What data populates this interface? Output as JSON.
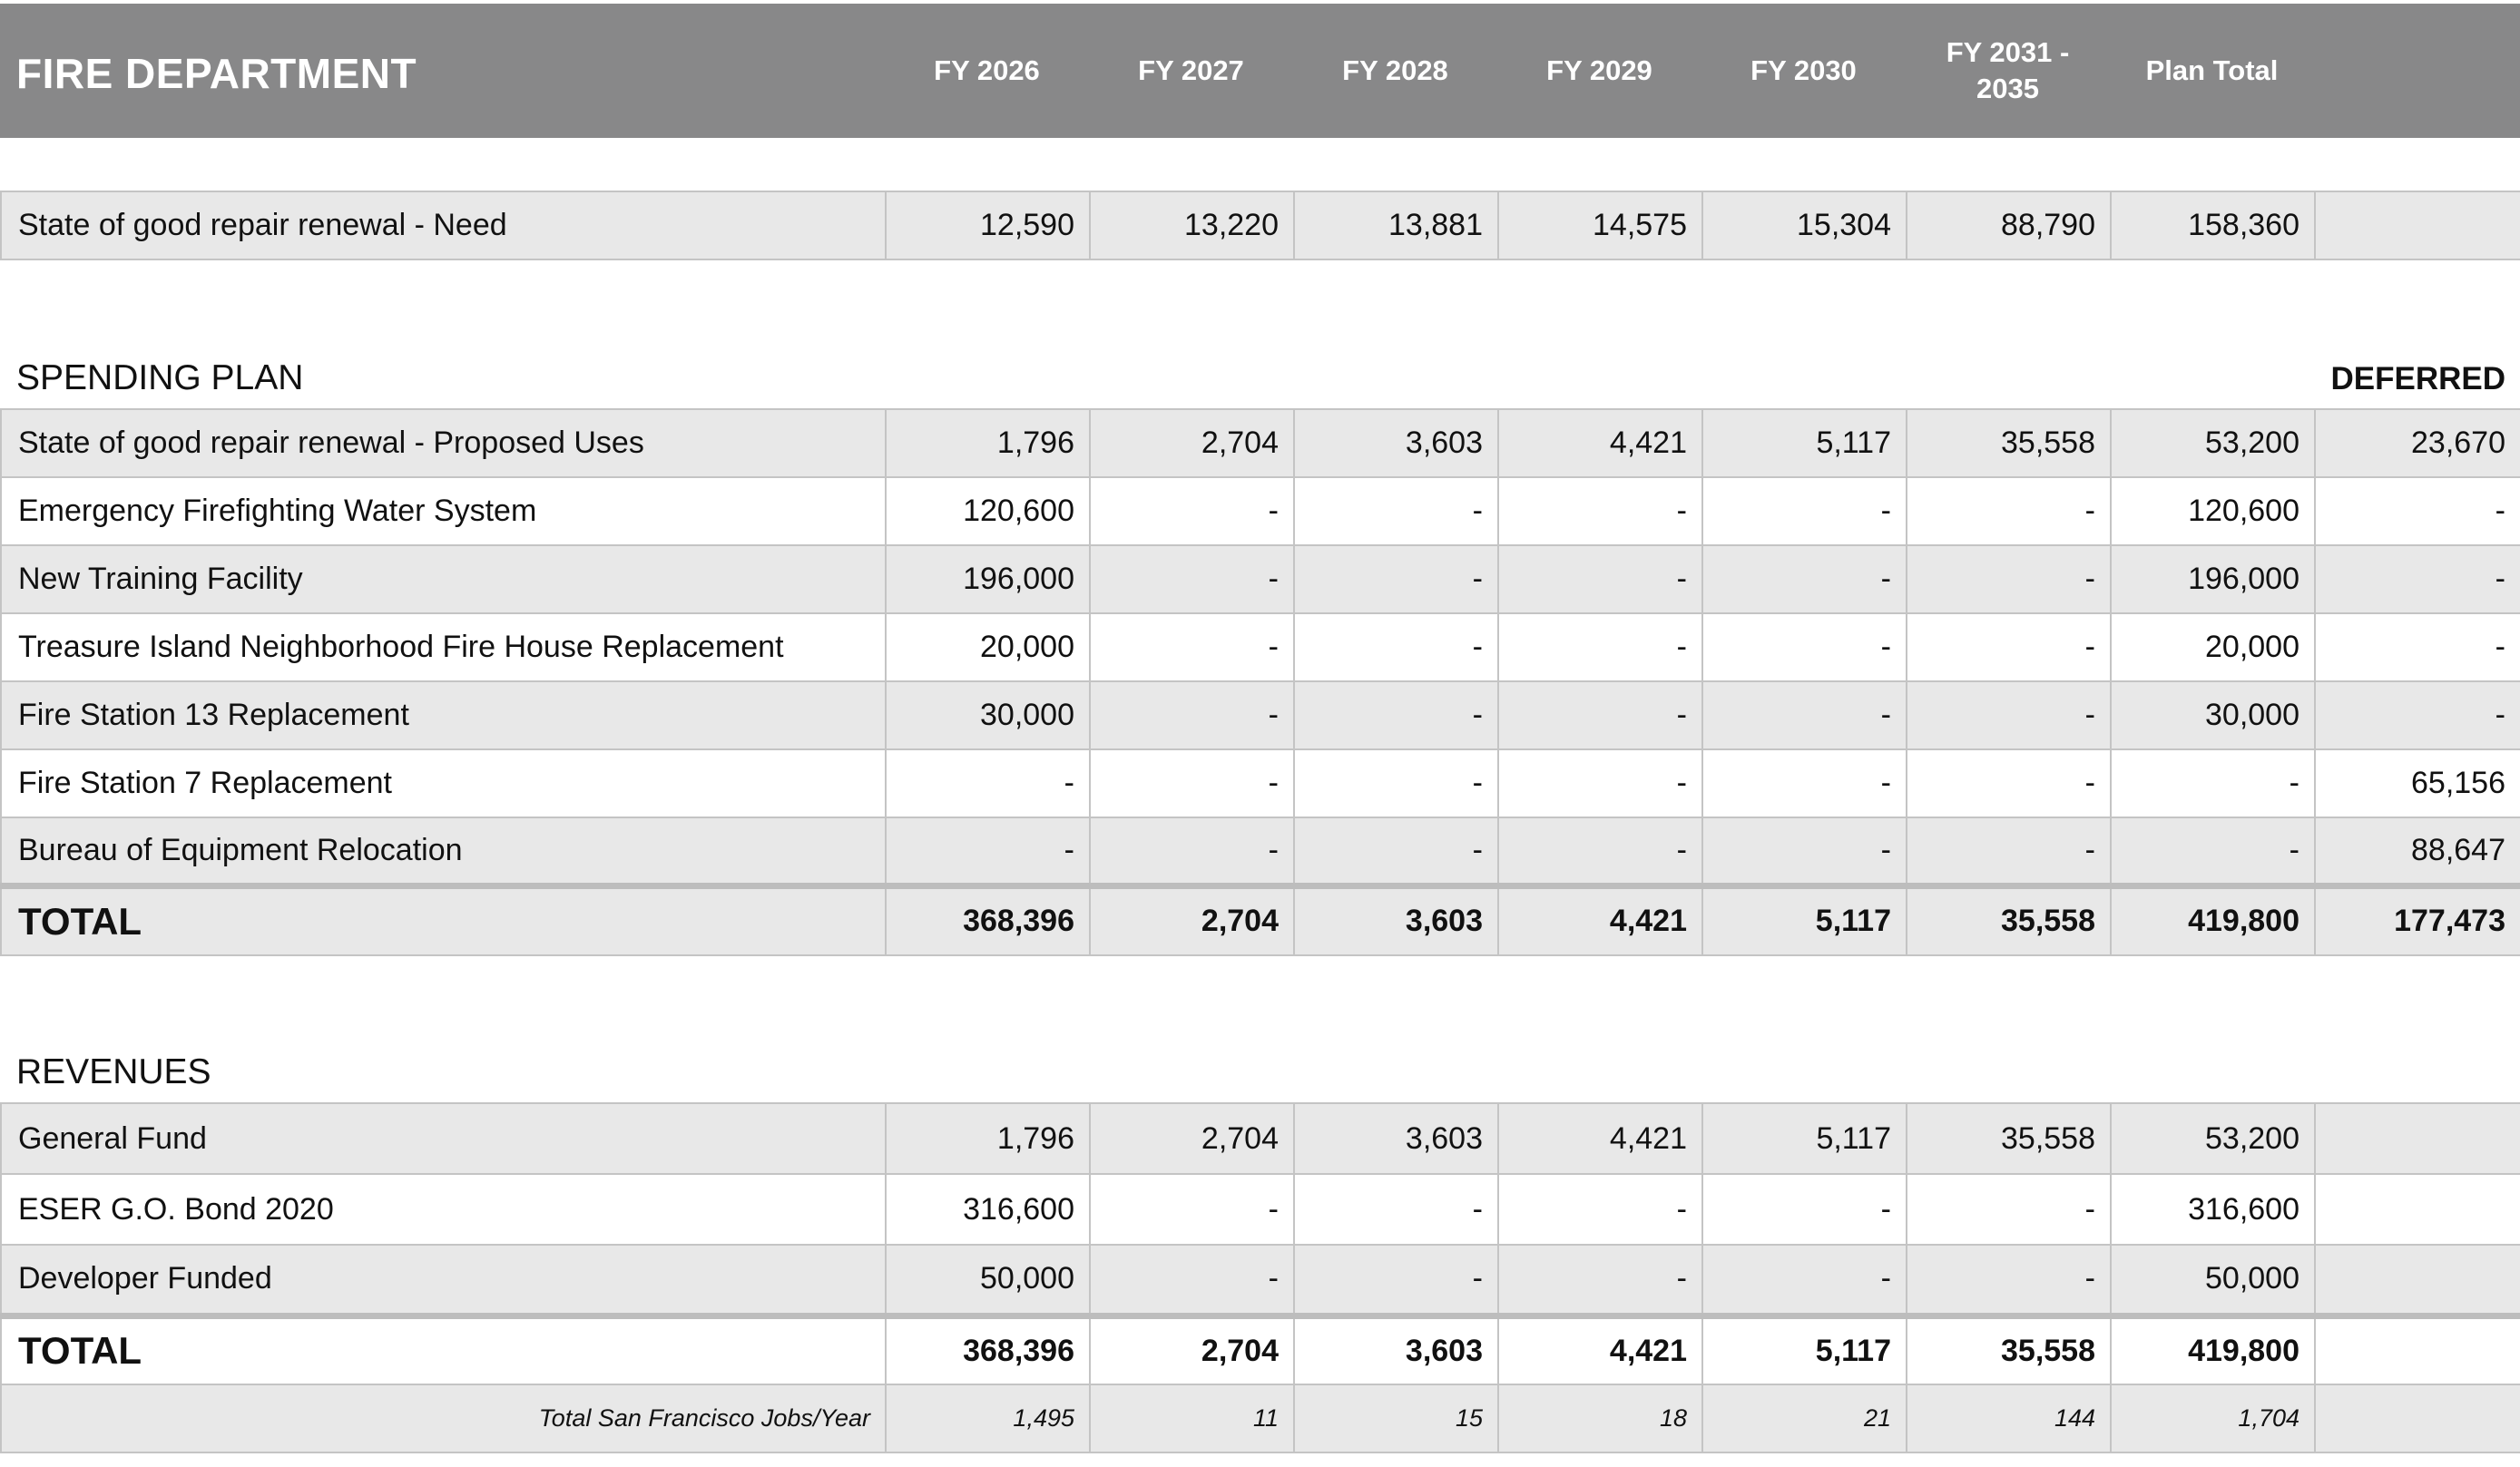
{
  "header": {
    "department": "FIRE DEPARTMENT",
    "columns": [
      "FY 2026",
      "FY 2027",
      "FY 2028",
      "FY 2029",
      "FY 2030",
      "FY 2031 - 2035",
      "Plan Total"
    ]
  },
  "need": {
    "label": "State of good repair renewal - Need",
    "values": [
      "12,590",
      "13,220",
      "13,881",
      "14,575",
      "15,304",
      "88,790",
      "158,360",
      ""
    ]
  },
  "spending_plan": {
    "title": "SPENDING PLAN",
    "deferred_label": "DEFERRED",
    "rows": [
      {
        "label": "State of good repair renewal - Proposed Uses",
        "values": [
          "1,796",
          "2,704",
          "3,603",
          "4,421",
          "5,117",
          "35,558",
          "53,200",
          "23,670"
        ]
      },
      {
        "label": "Emergency Firefighting Water System",
        "values": [
          "120,600",
          "-",
          "-",
          "-",
          "-",
          "-",
          "120,600",
          "-"
        ]
      },
      {
        "label": "New Training Facility",
        "values": [
          "196,000",
          "-",
          "-",
          "-",
          "-",
          "-",
          "196,000",
          "-"
        ]
      },
      {
        "label": "Treasure Island Neighborhood Fire House Replacement",
        "values": [
          "20,000",
          "-",
          "-",
          "-",
          "-",
          "-",
          "20,000",
          "-"
        ]
      },
      {
        "label": "Fire Station 13 Replacement",
        "values": [
          "30,000",
          "-",
          "-",
          "-",
          "-",
          "-",
          "30,000",
          "-"
        ]
      },
      {
        "label": "Fire Station 7 Replacement",
        "values": [
          "-",
          "-",
          "-",
          "-",
          "-",
          "-",
          "-",
          "65,156"
        ]
      },
      {
        "label": "Bureau of Equipment Relocation",
        "values": [
          "-",
          "-",
          "-",
          "-",
          "-",
          "-",
          "-",
          "88,647"
        ]
      }
    ],
    "total": {
      "label": "TOTAL",
      "values": [
        "368,396",
        "2,704",
        "3,603",
        "4,421",
        "5,117",
        "35,558",
        "419,800",
        "177,473"
      ]
    }
  },
  "revenues": {
    "title": "REVENUES",
    "rows": [
      {
        "label": "General Fund",
        "values": [
          "1,796",
          "2,704",
          "3,603",
          "4,421",
          "5,117",
          "35,558",
          "53,200",
          ""
        ]
      },
      {
        "label": "ESER G.O. Bond 2020",
        "values": [
          "316,600",
          "-",
          "-",
          "-",
          "-",
          "-",
          "316,600",
          ""
        ]
      },
      {
        "label": "Developer Funded",
        "values": [
          "50,000",
          "-",
          "-",
          "-",
          "-",
          "-",
          "50,000",
          ""
        ]
      }
    ],
    "total": {
      "label": "TOTAL",
      "values": [
        "368,396",
        "2,704",
        "3,603",
        "4,421",
        "5,117",
        "35,558",
        "419,800",
        ""
      ]
    },
    "jobs": {
      "label": "Total San Francisco Jobs/Year",
      "values": [
        "1,495",
        "11",
        "15",
        "18",
        "21",
        "144",
        "1,704",
        ""
      ]
    }
  }
}
